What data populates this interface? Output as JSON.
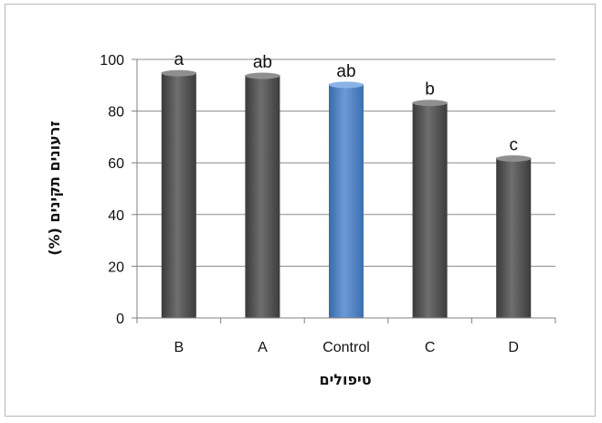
{
  "chart_data": {
    "type": "bar",
    "categories": [
      "B",
      "A",
      "Control",
      "C",
      "D"
    ],
    "values": [
      95,
      94,
      90.5,
      83.5,
      62
    ],
    "data_labels": [
      "a",
      "ab",
      "ab",
      "b",
      "c"
    ],
    "title": "",
    "xlabel": "טיפולים",
    "ylabel": "זרעונים תקינים (%)",
    "ylim": [
      0,
      100
    ],
    "yticks": [
      "0",
      "20",
      "40",
      "60",
      "80",
      "100"
    ],
    "grid": "horizontal",
    "colors": {
      "default_bar": "#595959",
      "highlight_bar": "#4a7ebb",
      "highlight_category": "Control",
      "grid": "#8c8c8c",
      "axis": "#808080"
    }
  }
}
